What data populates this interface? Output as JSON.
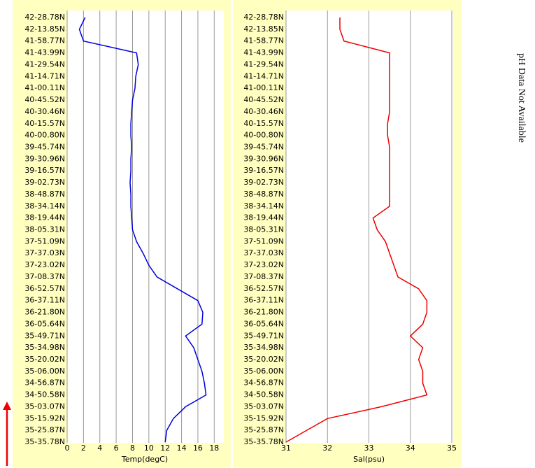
{
  "chart_data": [
    {
      "type": "line",
      "xlabel": "Temp(degC)",
      "color": "#0000dd",
      "categories": [
        "42-28.78N",
        "42-13.85N",
        "41-58.77N",
        "41-43.99N",
        "41-29.54N",
        "41-14.71N",
        "41-00.11N",
        "40-45.52N",
        "40-30.46N",
        "40-15.57N",
        "40-00.80N",
        "39-45.74N",
        "39-30.96N",
        "39-16.57N",
        "39-02.73N",
        "38-48.87N",
        "38-34.14N",
        "38-19.44N",
        "38-05.31N",
        "37-51.09N",
        "37-37.03N",
        "37-23.02N",
        "37-08.37N",
        "36-52.57N",
        "36-37.11N",
        "36-21.80N",
        "36-05.64N",
        "35-49.71N",
        "35-34.98N",
        "35-20.02N",
        "35-06.00N",
        "34-56.87N",
        "34-50.58N",
        "35-03.07N",
        "35-15.92N",
        "35-25.87N",
        "35-35.78N"
      ],
      "values": [
        2.2,
        1.5,
        2.0,
        8.5,
        8.7,
        8.4,
        8.3,
        8.0,
        7.9,
        7.8,
        7.8,
        7.9,
        7.8,
        7.8,
        7.7,
        7.8,
        7.8,
        7.9,
        8.0,
        8.5,
        9.3,
        10.0,
        11.0,
        13.5,
        16.0,
        16.6,
        16.5,
        14.5,
        15.5,
        16.0,
        16.5,
        16.8,
        17.0,
        14.5,
        13.0,
        12.2,
        12.0
      ],
      "xlim": [
        0,
        19
      ],
      "xticks": [
        0,
        2,
        4,
        6,
        8,
        10,
        12,
        14,
        16,
        18
      ],
      "grid": true
    },
    {
      "type": "line",
      "xlabel": "Sal(psu)",
      "color": "#ee0000",
      "categories": [
        "42-28.78N",
        "42-13.85N",
        "41-58.77N",
        "41-43.99N",
        "41-29.54N",
        "41-14.71N",
        "41-00.11N",
        "40-45.52N",
        "40-30.46N",
        "40-15.57N",
        "40-00.80N",
        "39-45.74N",
        "39-30.96N",
        "39-16.57N",
        "39-02.73N",
        "38-48.87N",
        "38-34.14N",
        "38-19.44N",
        "38-05.31N",
        "37-51.09N",
        "37-37.03N",
        "37-23.02N",
        "37-08.37N",
        "36-52.57N",
        "36-37.11N",
        "36-21.80N",
        "36-05.64N",
        "35-49.71N",
        "35-34.98N",
        "35-20.02N",
        "35-06.00N",
        "34-56.87N",
        "34-50.58N",
        "35-03.07N",
        "35-15.92N",
        "35-25.87N",
        "35-35.78N"
      ],
      "values": [
        32.3,
        32.3,
        32.4,
        33.5,
        33.5,
        33.5,
        33.5,
        33.5,
        33.5,
        33.45,
        33.45,
        33.5,
        33.5,
        33.5,
        33.5,
        33.5,
        33.5,
        33.1,
        33.2,
        33.4,
        33.5,
        33.6,
        33.7,
        34.2,
        34.4,
        34.4,
        34.3,
        34.0,
        34.3,
        34.2,
        34.3,
        34.3,
        34.4,
        33.3,
        32.0,
        31.5,
        31.0
      ],
      "xlim": [
        31,
        35
      ],
      "xticks": [
        31,
        32,
        33,
        34,
        35
      ],
      "grid": true
    }
  ],
  "side_note": "pH Data Not Available"
}
